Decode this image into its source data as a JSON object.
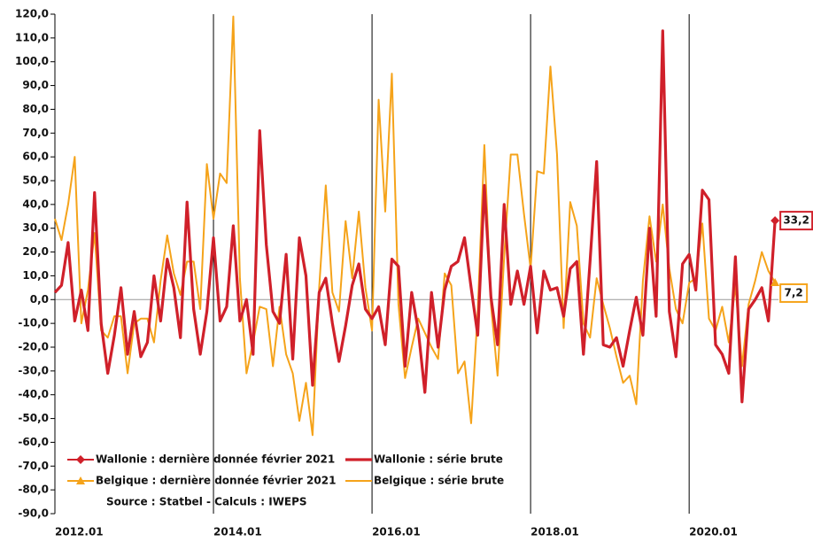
{
  "chart_data": {
    "type": "line",
    "categories": [
      "2012.01",
      null,
      null,
      null,
      null,
      null,
      null,
      null,
      null,
      null,
      null,
      null,
      null,
      null,
      null,
      null,
      null,
      null,
      null,
      null,
      null,
      null,
      null,
      null,
      "2014.01",
      null,
      null,
      null,
      null,
      null,
      null,
      null,
      null,
      null,
      null,
      null,
      null,
      null,
      null,
      null,
      null,
      null,
      null,
      null,
      null,
      null,
      null,
      null,
      "2016.01",
      null,
      null,
      null,
      null,
      null,
      null,
      null,
      null,
      null,
      null,
      null,
      null,
      null,
      null,
      null,
      null,
      null,
      null,
      null,
      null,
      null,
      null,
      null,
      "2018.01",
      null,
      null,
      null,
      null,
      null,
      null,
      null,
      null,
      null,
      null,
      null,
      null,
      null,
      null,
      null,
      null,
      null,
      null,
      null,
      null,
      null,
      null,
      null,
      "2020.01",
      null,
      null,
      null,
      null,
      null,
      null,
      null,
      null,
      null,
      null,
      null,
      null,
      null
    ],
    "series": [
      {
        "name": "Wallonie : série brute",
        "color": "#d0202a",
        "width": 3.2,
        "values": [
          3,
          6,
          24,
          -9,
          4,
          -13,
          45,
          -10,
          -31,
          -15,
          5,
          -23,
          -5,
          -24,
          -18,
          10,
          -9,
          17,
          5,
          -16,
          41,
          -4,
          -23,
          -5,
          26,
          -9,
          -3,
          31,
          -9,
          0,
          -23,
          71,
          23,
          -5,
          -10,
          19,
          -25,
          26,
          10,
          -36,
          3,
          9,
          -10,
          -26,
          -11,
          6,
          15,
          -4,
          -8,
          -3,
          -19,
          17,
          14,
          -28,
          3,
          -13,
          -39,
          3,
          -20,
          4,
          14,
          16,
          26,
          5,
          -15,
          48,
          1,
          -19,
          40,
          -2,
          12,
          -2,
          14,
          -14,
          12,
          4,
          5,
          -7,
          13,
          16,
          -23,
          16,
          58,
          -19,
          -20,
          -16,
          -28,
          -13,
          1,
          -15,
          30,
          -7,
          113,
          -5,
          -24,
          15,
          19,
          4,
          46,
          42,
          -19,
          -23,
          -31,
          18,
          -43,
          -4,
          0,
          5,
          -9,
          33.2
        ]
      },
      {
        "name": "Belgique : série brute",
        "color": "#f5a31a",
        "width": 2,
        "values": [
          34,
          25,
          40,
          60,
          -10,
          4,
          28,
          -13,
          -16,
          -7,
          -7,
          -31,
          -10,
          -8,
          -8,
          -18,
          8,
          27,
          11,
          2,
          16,
          16,
          -4,
          57,
          34,
          53,
          49,
          119,
          9,
          -31,
          -18,
          -3,
          -4,
          -28,
          -3,
          -23,
          -31,
          -51,
          -35,
          -57,
          5,
          48,
          3,
          -5,
          33,
          9,
          37,
          5,
          -13,
          84,
          37,
          95,
          -2,
          -33,
          -20,
          -8,
          -14,
          -20,
          -25,
          11,
          6,
          -31,
          -26,
          -52,
          -5,
          65,
          -2,
          -32,
          18,
          61,
          61,
          36,
          13,
          54,
          53,
          98,
          61,
          -12,
          41,
          31,
          -10,
          -16,
          9,
          -2,
          -12,
          -24,
          -35,
          -32,
          -44,
          8,
          35,
          16,
          40,
          13,
          -4,
          -10,
          7,
          9,
          32,
          -8,
          -13,
          -3,
          -18,
          6,
          -28,
          -2,
          8,
          20,
          12,
          7.2
        ]
      }
    ],
    "last_points": [
      {
        "name": "Wallonie : dernière donnée février 2021",
        "color": "#d0202a",
        "marker": "diamond",
        "value": 33.2,
        "value_label": "33,2"
      },
      {
        "name": "Belgique : dernière donnée février 2021",
        "color": "#f5a31a",
        "marker": "triangle",
        "value": 7.2,
        "value_label": "7,2"
      }
    ],
    "ylim": [
      -90,
      120
    ],
    "yticks": [
      {
        "value": 120,
        "label": "120,0"
      },
      {
        "value": 110,
        "label": "110,0"
      },
      {
        "value": 100,
        "label": "100,0"
      },
      {
        "value": 90,
        "label": "90,0"
      },
      {
        "value": 80,
        "label": "80,0"
      },
      {
        "value": 70,
        "label": "70,0"
      },
      {
        "value": 60,
        "label": "60,0"
      },
      {
        "value": 50,
        "label": "50,0"
      },
      {
        "value": 40,
        "label": "40,0"
      },
      {
        "value": 30,
        "label": "30,0"
      },
      {
        "value": 20,
        "label": "20,0"
      },
      {
        "value": 10,
        "label": "10,0"
      },
      {
        "value": 0,
        "label": "0,0"
      },
      {
        "value": -10,
        "label": "-10,0"
      },
      {
        "value": -20,
        "label": "-20,0"
      },
      {
        "value": -30,
        "label": "-30,0"
      },
      {
        "value": -40,
        "label": "-40,0"
      },
      {
        "value": -50,
        "label": "-50,0"
      },
      {
        "value": -60,
        "label": "-60,0"
      },
      {
        "value": -70,
        "label": "-70,0"
      },
      {
        "value": -80,
        "label": "-80,0"
      },
      {
        "value": -90,
        "label": "-90,0"
      }
    ],
    "xgrid": true,
    "source": "Source : Statbel - Calculs : IWEPS"
  }
}
